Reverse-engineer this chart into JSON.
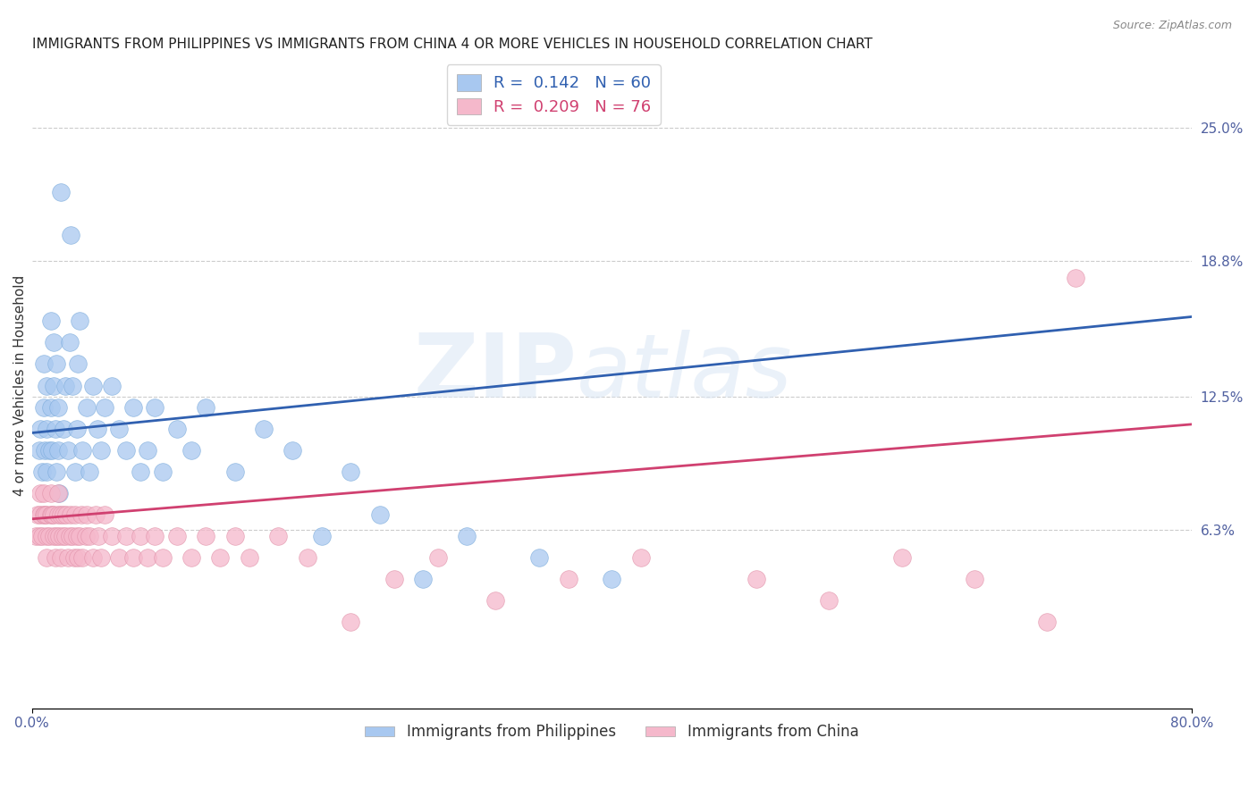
{
  "title": "IMMIGRANTS FROM PHILIPPINES VS IMMIGRANTS FROM CHINA 4 OR MORE VEHICLES IN HOUSEHOLD CORRELATION CHART",
  "source": "Source: ZipAtlas.com",
  "xlabel": "",
  "ylabel": "4 or more Vehicles in Household",
  "xlim": [
    0.0,
    0.8
  ],
  "ylim": [
    -0.02,
    0.28
  ],
  "xticks": [
    0.0,
    0.8
  ],
  "xticklabels": [
    "0.0%",
    "80.0%"
  ],
  "yticks_right": [
    0.063,
    0.125,
    0.188,
    0.25
  ],
  "ytick_labels_right": [
    "6.3%",
    "12.5%",
    "18.8%",
    "25.0%"
  ],
  "grid_yticks": [
    0.063,
    0.125,
    0.188,
    0.25
  ],
  "series": [
    {
      "label": "Immigrants from Philippines",
      "R": 0.142,
      "N": 60,
      "color": "#a8c8f0",
      "edge_color": "#7aaada",
      "line_color": "#3060b0",
      "x": [
        0.005,
        0.006,
        0.007,
        0.008,
        0.008,
        0.009,
        0.01,
        0.01,
        0.01,
        0.012,
        0.013,
        0.013,
        0.014,
        0.015,
        0.015,
        0.016,
        0.017,
        0.017,
        0.018,
        0.018,
        0.019,
        0.02,
        0.022,
        0.023,
        0.025,
        0.026,
        0.027,
        0.028,
        0.03,
        0.031,
        0.032,
        0.033,
        0.035,
        0.038,
        0.04,
        0.042,
        0.045,
        0.048,
        0.05,
        0.055,
        0.06,
        0.065,
        0.07,
        0.075,
        0.08,
        0.085,
        0.09,
        0.1,
        0.11,
        0.12,
        0.14,
        0.16,
        0.18,
        0.2,
        0.22,
        0.24,
        0.27,
        0.3,
        0.35,
        0.4
      ],
      "y": [
        0.1,
        0.11,
        0.09,
        0.12,
        0.14,
        0.1,
        0.09,
        0.11,
        0.13,
        0.1,
        0.12,
        0.16,
        0.1,
        0.13,
        0.15,
        0.11,
        0.09,
        0.14,
        0.1,
        0.12,
        0.08,
        0.22,
        0.11,
        0.13,
        0.1,
        0.15,
        0.2,
        0.13,
        0.09,
        0.11,
        0.14,
        0.16,
        0.1,
        0.12,
        0.09,
        0.13,
        0.11,
        0.1,
        0.12,
        0.13,
        0.11,
        0.1,
        0.12,
        0.09,
        0.1,
        0.12,
        0.09,
        0.11,
        0.1,
        0.12,
        0.09,
        0.11,
        0.1,
        0.06,
        0.09,
        0.07,
        0.04,
        0.06,
        0.05,
        0.04
      ],
      "trend_x": [
        0.0,
        0.8
      ],
      "trend_y": [
        0.108,
        0.162
      ]
    },
    {
      "label": "Immigrants from China",
      "R": 0.209,
      "N": 76,
      "color": "#f5b8cb",
      "edge_color": "#e090a8",
      "line_color": "#d04070",
      "x": [
        0.003,
        0.004,
        0.005,
        0.006,
        0.006,
        0.007,
        0.008,
        0.008,
        0.009,
        0.01,
        0.01,
        0.01,
        0.012,
        0.013,
        0.013,
        0.014,
        0.015,
        0.015,
        0.016,
        0.017,
        0.018,
        0.018,
        0.019,
        0.02,
        0.02,
        0.021,
        0.022,
        0.023,
        0.024,
        0.025,
        0.026,
        0.027,
        0.028,
        0.029,
        0.03,
        0.031,
        0.032,
        0.033,
        0.034,
        0.035,
        0.037,
        0.038,
        0.04,
        0.042,
        0.044,
        0.046,
        0.048,
        0.05,
        0.055,
        0.06,
        0.065,
        0.07,
        0.075,
        0.08,
        0.085,
        0.09,
        0.1,
        0.11,
        0.12,
        0.13,
        0.14,
        0.15,
        0.17,
        0.19,
        0.22,
        0.25,
        0.28,
        0.32,
        0.37,
        0.42,
        0.5,
        0.55,
        0.6,
        0.65,
        0.7,
        0.72
      ],
      "y": [
        0.06,
        0.07,
        0.06,
        0.07,
        0.08,
        0.06,
        0.07,
        0.08,
        0.07,
        0.05,
        0.06,
        0.07,
        0.06,
        0.07,
        0.08,
        0.07,
        0.06,
        0.07,
        0.05,
        0.06,
        0.07,
        0.08,
        0.06,
        0.05,
        0.07,
        0.06,
        0.07,
        0.06,
        0.07,
        0.05,
        0.06,
        0.07,
        0.06,
        0.05,
        0.07,
        0.06,
        0.05,
        0.06,
        0.07,
        0.05,
        0.06,
        0.07,
        0.06,
        0.05,
        0.07,
        0.06,
        0.05,
        0.07,
        0.06,
        0.05,
        0.06,
        0.05,
        0.06,
        0.05,
        0.06,
        0.05,
        0.06,
        0.05,
        0.06,
        0.05,
        0.06,
        0.05,
        0.06,
        0.05,
        0.02,
        0.04,
        0.05,
        0.03,
        0.04,
        0.05,
        0.04,
        0.03,
        0.05,
        0.04,
        0.02,
        0.18
      ],
      "trend_x": [
        0.0,
        0.8
      ],
      "trend_y": [
        0.068,
        0.112
      ]
    }
  ],
  "watermark_part1": "ZIP",
  "watermark_part2": "atlas",
  "background_color": "#ffffff",
  "title_fontsize": 11,
  "axis_label_fontsize": 11,
  "tick_fontsize": 11
}
